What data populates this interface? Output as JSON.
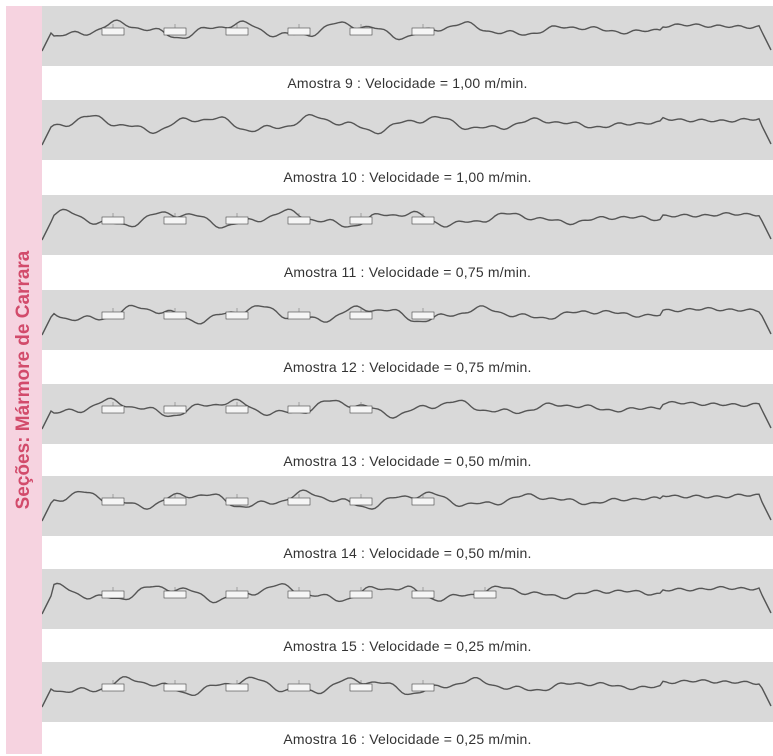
{
  "sidebar": {
    "label": "Seções: Mármore de Carrara",
    "color": "#d24b6b",
    "background": "#f6d3e0"
  },
  "colors": {
    "profile_background": "#d9d9d9",
    "profile_line": "#555555"
  },
  "samples": [
    {
      "caption": "Amostra 9 : Velocidade = 1,00 m/min.",
      "markers": 6
    },
    {
      "caption": "Amostra 10 : Velocidade = 1,00 m/min.",
      "markers": 0
    },
    {
      "caption": "Amostra 11 : Velocidade = 0,75 m/min.",
      "markers": 6
    },
    {
      "caption": "Amostra 12 : Velocidade = 0,75 m/min.",
      "markers": 6
    },
    {
      "caption": "Amostra 13 : Velocidade = 0,50 m/min.",
      "markers": 5
    },
    {
      "caption": "Amostra 14 : Velocidade = 0,50 m/min.",
      "markers": 6
    },
    {
      "caption": "Amostra 15 : Velocidade = 0,25 m/min.",
      "markers": 7
    },
    {
      "caption": "Amostra 16 : Velocidade = 0,25 m/min.",
      "markers": 6
    }
  ]
}
